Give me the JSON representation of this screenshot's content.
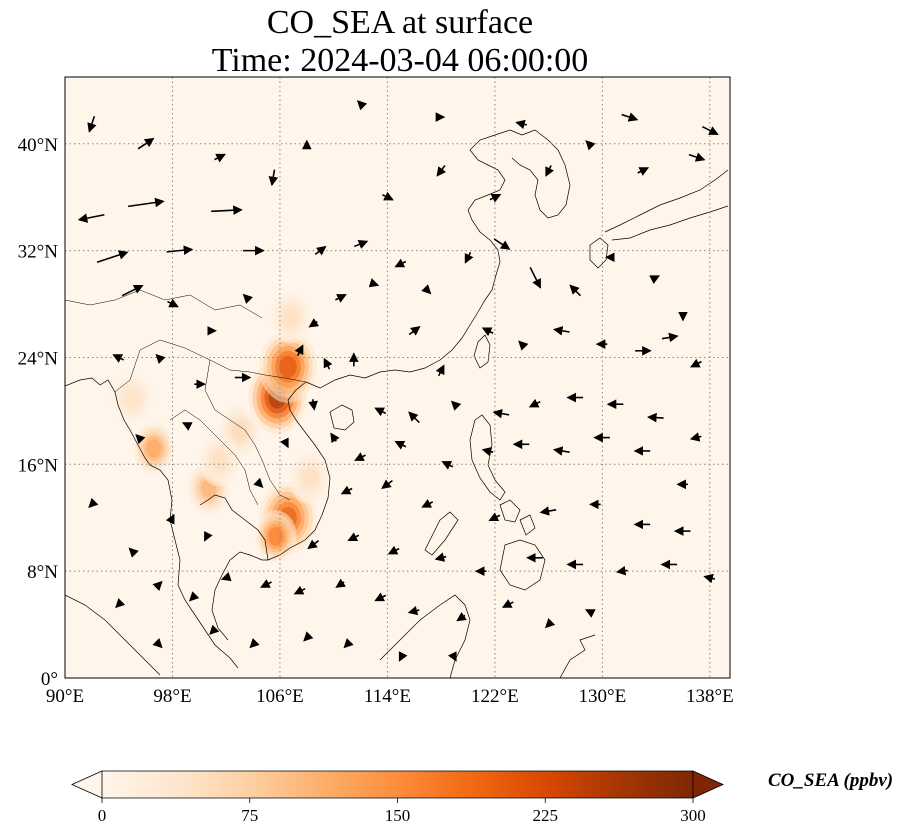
{
  "title": {
    "line1": "CO_SEA at surface",
    "line2": "Time: 2024-03-04 06:00:00"
  },
  "map": {
    "extent": {
      "lon_min": 90,
      "lon_max": 139.5,
      "lat_min": 0,
      "lat_max": 45
    },
    "lon_ticks": [
      {
        "value": 90,
        "label": "90°E"
      },
      {
        "value": 98,
        "label": "98°E"
      },
      {
        "value": 106,
        "label": "106°E"
      },
      {
        "value": 114,
        "label": "114°E"
      },
      {
        "value": 122,
        "label": "122°E"
      },
      {
        "value": 130,
        "label": "130°E"
      },
      {
        "value": 138,
        "label": "138°E"
      }
    ],
    "lat_ticks": [
      {
        "value": 0,
        "label": "0°"
      },
      {
        "value": 8,
        "label": "8°N"
      },
      {
        "value": 16,
        "label": "16°N"
      },
      {
        "value": 24,
        "label": "24°N"
      },
      {
        "value": 32,
        "label": "32°N"
      },
      {
        "value": 40,
        "label": "40°N"
      }
    ],
    "gridlines": true,
    "background_color": "#fff5eb",
    "coastline_color": "#000000",
    "hotspots": [
      {
        "lon": 105.8,
        "lat": 21.0,
        "value": 320
      },
      {
        "lon": 106.6,
        "lat": 23.3,
        "value": 260
      },
      {
        "lon": 106.6,
        "lat": 12.0,
        "value": 240
      },
      {
        "lon": 105.7,
        "lat": 10.6,
        "value": 200
      },
      {
        "lon": 106.8,
        "lat": 27.0,
        "value": 60
      },
      {
        "lon": 96.6,
        "lat": 17.2,
        "value": 150
      },
      {
        "lon": 100.7,
        "lat": 14.2,
        "value": 130
      },
      {
        "lon": 103.0,
        "lat": 18.5,
        "value": 70
      },
      {
        "lon": 101.5,
        "lat": 16.3,
        "value": 60
      },
      {
        "lon": 95.0,
        "lat": 21.0,
        "value": 55
      },
      {
        "lon": 108.2,
        "lat": 15.0,
        "value": 60
      }
    ],
    "wind_vectors": [
      {
        "lon": 92,
        "lat": 34.5,
        "u": -5,
        "v": -1
      },
      {
        "lon": 93.5,
        "lat": 31.5,
        "u": 6,
        "v": 2
      },
      {
        "lon": 96,
        "lat": 35.5,
        "u": 7,
        "v": 1
      },
      {
        "lon": 98.5,
        "lat": 32,
        "u": 5,
        "v": 0.5
      },
      {
        "lon": 102,
        "lat": 35,
        "u": 6,
        "v": 0.3
      },
      {
        "lon": 104,
        "lat": 32,
        "u": 4,
        "v": 0
      },
      {
        "lon": 105.5,
        "lat": 37.5,
        "u": -0.5,
        "v": -3
      },
      {
        "lon": 101.5,
        "lat": 39,
        "u": 2,
        "v": 1
      },
      {
        "lon": 96,
        "lat": 40,
        "u": 3,
        "v": 2
      },
      {
        "lon": 92,
        "lat": 41.5,
        "u": -1,
        "v": -3
      },
      {
        "lon": 95,
        "lat": 29,
        "u": 4,
        "v": 2
      },
      {
        "lon": 98,
        "lat": 28,
        "u": 2,
        "v": -1
      },
      {
        "lon": 101,
        "lat": 26,
        "u": 1,
        "v": 0
      },
      {
        "lon": 103.5,
        "lat": 28.5,
        "u": -1,
        "v": 1
      },
      {
        "lon": 94,
        "lat": 24,
        "u": -2,
        "v": 1
      },
      {
        "lon": 97,
        "lat": 24,
        "u": -1,
        "v": 1
      },
      {
        "lon": 100,
        "lat": 22,
        "u": 2,
        "v": 0
      },
      {
        "lon": 103.2,
        "lat": 22.5,
        "u": 3,
        "v": 0
      },
      {
        "lon": 107.5,
        "lat": 24.5,
        "u": 1,
        "v": 2
      },
      {
        "lon": 109.5,
        "lat": 23.5,
        "u": -1,
        "v": 2
      },
      {
        "lon": 111.5,
        "lat": 23.8,
        "u": 0,
        "v": 2.5
      },
      {
        "lon": 108.5,
        "lat": 26.5,
        "u": -1.5,
        "v": -1
      },
      {
        "lon": 110.5,
        "lat": 28.5,
        "u": 2,
        "v": 1
      },
      {
        "lon": 113,
        "lat": 29.5,
        "u": 1.5,
        "v": -0.5
      },
      {
        "lon": 109,
        "lat": 32,
        "u": 2,
        "v": 1.5
      },
      {
        "lon": 112,
        "lat": 32.5,
        "u": 2.5,
        "v": 1
      },
      {
        "lon": 115,
        "lat": 31,
        "u": -2,
        "v": -1
      },
      {
        "lon": 117,
        "lat": 29,
        "u": 1,
        "v": -1
      },
      {
        "lon": 120,
        "lat": 31.5,
        "u": -1,
        "v": -2
      },
      {
        "lon": 122.5,
        "lat": 32.5,
        "u": 3,
        "v": -2
      },
      {
        "lon": 125,
        "lat": 30,
        "u": 2,
        "v": -4
      },
      {
        "lon": 128,
        "lat": 29,
        "u": -2,
        "v": 2
      },
      {
        "lon": 130.5,
        "lat": 31.5,
        "u": -1,
        "v": 0
      },
      {
        "lon": 134,
        "lat": 30,
        "u": 1,
        "v": 0.5
      },
      {
        "lon": 136,
        "lat": 27,
        "u": 0,
        "v": -1
      },
      {
        "lon": 114,
        "lat": 36,
        "u": 2,
        "v": -1
      },
      {
        "lon": 118,
        "lat": 38,
        "u": -1.5,
        "v": -2
      },
      {
        "lon": 122,
        "lat": 36,
        "u": 2,
        "v": 1
      },
      {
        "lon": 126,
        "lat": 38,
        "u": -1,
        "v": -2
      },
      {
        "lon": 129,
        "lat": 40,
        "u": -1,
        "v": 1
      },
      {
        "lon": 133,
        "lat": 38,
        "u": 2,
        "v": 1
      },
      {
        "lon": 137,
        "lat": 39,
        "u": 3,
        "v": -1
      },
      {
        "lon": 112,
        "lat": 43,
        "u": -1,
        "v": 1
      },
      {
        "lon": 118,
        "lat": 42,
        "u": 1,
        "v": 0
      },
      {
        "lon": 124,
        "lat": 41.5,
        "u": -2,
        "v": 0.5
      },
      {
        "lon": 132,
        "lat": 42,
        "u": 3,
        "v": -1
      },
      {
        "lon": 138,
        "lat": 41,
        "u": 3,
        "v": -1.5
      },
      {
        "lon": 108,
        "lat": 40,
        "u": 0,
        "v": 1
      },
      {
        "lon": 116,
        "lat": 26,
        "u": 2,
        "v": 1.5
      },
      {
        "lon": 118,
        "lat": 23,
        "u": 1,
        "v": 2
      },
      {
        "lon": 121.5,
        "lat": 26,
        "u": -2,
        "v": 1
      },
      {
        "lon": 124,
        "lat": 25,
        "u": -1,
        "v": 1
      },
      {
        "lon": 127,
        "lat": 26,
        "u": -3,
        "v": 0.5
      },
      {
        "lon": 130,
        "lat": 25,
        "u": -2,
        "v": 0
      },
      {
        "lon": 133,
        "lat": 24.5,
        "u": 3,
        "v": 0
      },
      {
        "lon": 135,
        "lat": 25.5,
        "u": 3,
        "v": 0.5
      },
      {
        "lon": 137,
        "lat": 23.5,
        "u": -2,
        "v": -1
      },
      {
        "lon": 113.5,
        "lat": 20,
        "u": -2,
        "v": 1
      },
      {
        "lon": 116,
        "lat": 19.5,
        "u": -2,
        "v": 2
      },
      {
        "lon": 119,
        "lat": 20.5,
        "u": -1,
        "v": 1
      },
      {
        "lon": 122.5,
        "lat": 19.8,
        "u": -3,
        "v": 0.5
      },
      {
        "lon": 125,
        "lat": 20.5,
        "u": -2,
        "v": -1
      },
      {
        "lon": 128,
        "lat": 21,
        "u": -3,
        "v": 0
      },
      {
        "lon": 131,
        "lat": 20.5,
        "u": -3,
        "v": 0
      },
      {
        "lon": 134,
        "lat": 19.5,
        "u": -3,
        "v": 0.2
      },
      {
        "lon": 137,
        "lat": 18,
        "u": -2,
        "v": -0.5
      },
      {
        "lon": 110,
        "lat": 18,
        "u": -1,
        "v": 1.5
      },
      {
        "lon": 112,
        "lat": 16.5,
        "u": -2,
        "v": -1
      },
      {
        "lon": 115,
        "lat": 17.5,
        "u": -2,
        "v": 1
      },
      {
        "lon": 118.5,
        "lat": 16,
        "u": -2,
        "v": 1
      },
      {
        "lon": 121.5,
        "lat": 17,
        "u": -2,
        "v": 0.5
      },
      {
        "lon": 124,
        "lat": 17.5,
        "u": -3,
        "v": 0
      },
      {
        "lon": 127,
        "lat": 17,
        "u": -3,
        "v": 0.5
      },
      {
        "lon": 130,
        "lat": 18,
        "u": -3,
        "v": 0
      },
      {
        "lon": 133,
        "lat": 17,
        "u": -3,
        "v": 0
      },
      {
        "lon": 136,
        "lat": 14.5,
        "u": -2,
        "v": 0
      },
      {
        "lon": 111,
        "lat": 14,
        "u": -2,
        "v": -1
      },
      {
        "lon": 114,
        "lat": 14.5,
        "u": -2,
        "v": -1.5
      },
      {
        "lon": 117,
        "lat": 13,
        "u": -2,
        "v": -1
      },
      {
        "lon": 122,
        "lat": 12,
        "u": -2,
        "v": -1
      },
      {
        "lon": 126,
        "lat": 12.5,
        "u": -3,
        "v": -0.5
      },
      {
        "lon": 129.5,
        "lat": 13,
        "u": -2,
        "v": 0
      },
      {
        "lon": 133,
        "lat": 11.5,
        "u": -3,
        "v": 0
      },
      {
        "lon": 136,
        "lat": 11,
        "u": -3,
        "v": 0
      },
      {
        "lon": 108.5,
        "lat": 10,
        "u": -2,
        "v": -1.5
      },
      {
        "lon": 111.5,
        "lat": 10.5,
        "u": -2,
        "v": -1
      },
      {
        "lon": 114.5,
        "lat": 9.5,
        "u": -2,
        "v": -1
      },
      {
        "lon": 118,
        "lat": 9,
        "u": -2,
        "v": -0.5
      },
      {
        "lon": 121,
        "lat": 8,
        "u": -2,
        "v": 0
      },
      {
        "lon": 125,
        "lat": 9,
        "u": -3,
        "v": 0
      },
      {
        "lon": 128,
        "lat": 8.5,
        "u": -3,
        "v": 0
      },
      {
        "lon": 131.5,
        "lat": 8,
        "u": -2,
        "v": -0.3
      },
      {
        "lon": 135,
        "lat": 8.5,
        "u": -3,
        "v": 0
      },
      {
        "lon": 138,
        "lat": 7.5,
        "u": -2,
        "v": 0.5
      },
      {
        "lon": 92,
        "lat": 13,
        "u": -1,
        "v": -1
      },
      {
        "lon": 95,
        "lat": 9.5,
        "u": -1,
        "v": 1
      },
      {
        "lon": 97,
        "lat": 7,
        "u": 1,
        "v": 1
      },
      {
        "lon": 99.5,
        "lat": 6,
        "u": -1,
        "v": -1
      },
      {
        "lon": 102,
        "lat": 7.5,
        "u": -1.5,
        "v": -0.5
      },
      {
        "lon": 105,
        "lat": 7,
        "u": -2,
        "v": -1
      },
      {
        "lon": 107.5,
        "lat": 6.5,
        "u": -2,
        "v": -1
      },
      {
        "lon": 110.5,
        "lat": 7,
        "u": -1.5,
        "v": -1
      },
      {
        "lon": 113.5,
        "lat": 6,
        "u": -2,
        "v": -1
      },
      {
        "lon": 116,
        "lat": 5,
        "u": -2,
        "v": -0.5
      },
      {
        "lon": 119.5,
        "lat": 4.5,
        "u": -1.5,
        "v": -1
      },
      {
        "lon": 123,
        "lat": 5.5,
        "u": -2,
        "v": -1
      },
      {
        "lon": 126,
        "lat": 4,
        "u": -1,
        "v": -1
      },
      {
        "lon": 129,
        "lat": 5,
        "u": -1,
        "v": 0.5
      },
      {
        "lon": 94,
        "lat": 5.5,
        "u": -1,
        "v": -1
      },
      {
        "lon": 97,
        "lat": 2.5,
        "u": 1,
        "v": -1
      },
      {
        "lon": 101,
        "lat": 3.5,
        "u": -1,
        "v": -1
      },
      {
        "lon": 104,
        "lat": 2.5,
        "u": -1,
        "v": -1
      },
      {
        "lon": 108,
        "lat": 3,
        "u": -1,
        "v": -1
      },
      {
        "lon": 111,
        "lat": 2.5,
        "u": -1,
        "v": -1
      },
      {
        "lon": 115,
        "lat": 1.5,
        "u": -0.5,
        "v": -1
      },
      {
        "lon": 119,
        "lat": 1.5,
        "u": 0.5,
        "v": -1
      },
      {
        "lon": 98,
        "lat": 12,
        "u": 0.5,
        "v": 1
      },
      {
        "lon": 100.5,
        "lat": 10.5,
        "u": -0.5,
        "v": -1
      },
      {
        "lon": 104.5,
        "lat": 14.5,
        "u": 1,
        "v": -1
      },
      {
        "lon": 106.5,
        "lat": 17.5,
        "u": 0.5,
        "v": -1
      },
      {
        "lon": 108.5,
        "lat": 20.5,
        "u": 0.3,
        "v": -2
      },
      {
        "lon": 99,
        "lat": 19,
        "u": -1,
        "v": 0.5
      },
      {
        "lon": 95.5,
        "lat": 18,
        "u": -1,
        "v": 1
      }
    ]
  },
  "colorbar": {
    "title": "CO_SEA (ppbv)",
    "min": 0,
    "max": 300,
    "ticks": [
      {
        "value": 0,
        "label": "0"
      },
      {
        "value": 75,
        "label": "75"
      },
      {
        "value": 150,
        "label": "150"
      },
      {
        "value": 225,
        "label": "225"
      },
      {
        "value": 300,
        "label": "300"
      }
    ],
    "colors": [
      "#fff5eb",
      "#fee6ce",
      "#fdd0a2",
      "#fdae6b",
      "#fd8d3c",
      "#f16913",
      "#d94801",
      "#a63603",
      "#7f2704"
    ],
    "extend": "both"
  },
  "chart_data": {
    "type": "heatmap",
    "title": "CO_SEA at surface",
    "subtitle": "Time: 2024-03-04 06:00:00",
    "x_ticks": [
      "90°E",
      "98°E",
      "106°E",
      "114°E",
      "122°E",
      "130°E",
      "138°E"
    ],
    "y_ticks": [
      "0°",
      "8°N",
      "16°N",
      "24°N",
      "32°N",
      "40°N"
    ],
    "xlim": [
      90,
      139.5
    ],
    "ylim": [
      0,
      45
    ],
    "colorbar_label": "CO_SEA (ppbv)",
    "colorbar_range": [
      0,
      300
    ],
    "colorbar_ticks": [
      0,
      75,
      150,
      225,
      300
    ],
    "grid": true
  }
}
